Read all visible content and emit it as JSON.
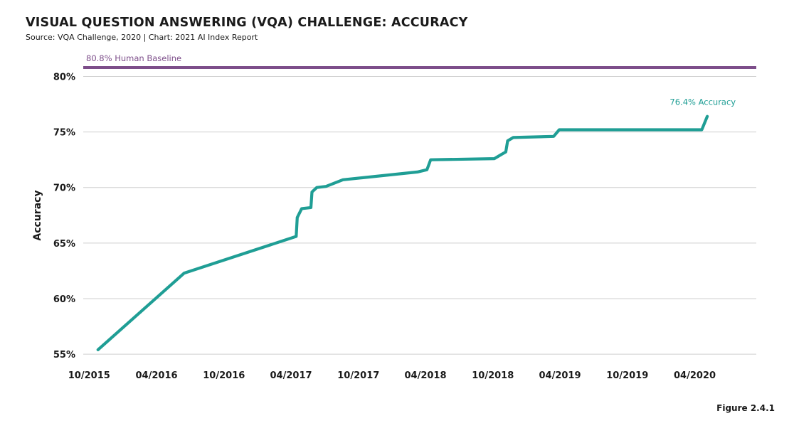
{
  "header": {
    "title": "VISUAL QUESTION ANSWERING (VQA) CHALLENGE: ACCURACY",
    "subtitle": "Source: VQA Challenge, 2020 | Chart: 2021 AI Index Report"
  },
  "footer": {
    "figure_label": "Figure 2.4.1"
  },
  "colors": {
    "series": "#1f9e95",
    "baseline": "#7d4e8a",
    "grid": "#cfcfcf"
  },
  "chart_data": {
    "type": "line",
    "ylabel": "Accuracy",
    "ylim": [
      54.5,
      81.5
    ],
    "xlim": [
      "2015-09-15",
      "2020-09-15"
    ],
    "yticks": [
      {
        "value": 55,
        "label": "55%"
      },
      {
        "value": 60,
        "label": "60%"
      },
      {
        "value": 65,
        "label": "65%"
      },
      {
        "value": 70,
        "label": "70%"
      },
      {
        "value": 75,
        "label": "75%"
      },
      {
        "value": 80,
        "label": "80%"
      }
    ],
    "xticks": [
      {
        "date": "2015-10-01",
        "label": "10/2015"
      },
      {
        "date": "2016-04-01",
        "label": "04/2016"
      },
      {
        "date": "2016-10-01",
        "label": "10/2016"
      },
      {
        "date": "2017-04-01",
        "label": "04/2017"
      },
      {
        "date": "2017-10-01",
        "label": "10/2017"
      },
      {
        "date": "2018-04-01",
        "label": "04/2018"
      },
      {
        "date": "2018-10-01",
        "label": "10/2018"
      },
      {
        "date": "2019-04-01",
        "label": "04/2019"
      },
      {
        "date": "2019-10-01",
        "label": "10/2019"
      },
      {
        "date": "2020-04-01",
        "label": "04/2020"
      }
    ],
    "grid": true,
    "series": [
      {
        "points": [
          [
            "2015-10-25",
            55.4
          ],
          [
            "2016-06-15",
            62.3
          ],
          [
            "2017-04-15",
            65.6
          ],
          [
            "2017-04-18",
            67.3
          ],
          [
            "2017-04-30",
            68.1
          ],
          [
            "2017-05-25",
            68.2
          ],
          [
            "2017-05-28",
            69.6
          ],
          [
            "2017-06-10",
            70.0
          ],
          [
            "2017-07-05",
            70.1
          ],
          [
            "2017-08-20",
            70.7
          ],
          [
            "2018-03-10",
            71.4
          ],
          [
            "2018-04-05",
            71.6
          ],
          [
            "2018-04-15",
            72.5
          ],
          [
            "2018-10-05",
            72.6
          ],
          [
            "2018-10-25",
            73.0
          ],
          [
            "2018-11-05",
            73.2
          ],
          [
            "2018-11-10",
            74.2
          ],
          [
            "2018-11-25",
            74.5
          ],
          [
            "2019-03-15",
            74.6
          ],
          [
            "2019-03-30",
            75.2
          ],
          [
            "2020-04-20",
            75.2
          ],
          [
            "2020-05-05",
            76.4
          ]
        ]
      }
    ],
    "baseline": {
      "value": 80.8,
      "label": "80.8% Human Baseline"
    },
    "end_annotation": {
      "label": "76.4% Accuracy"
    }
  }
}
